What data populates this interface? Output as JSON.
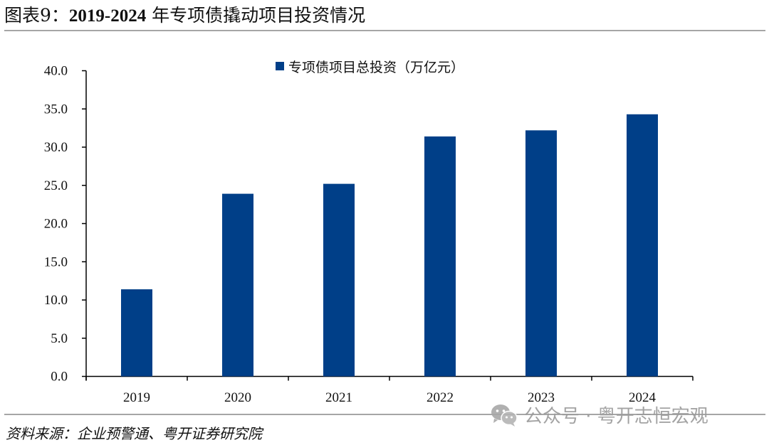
{
  "header": {
    "figure_label": "图表9：",
    "years": "2019-2024",
    "title_rest": " 年专项债撬动项目投资情况"
  },
  "legend": {
    "label": "专项债项目总投资（万亿元）",
    "color": "#003F88"
  },
  "footer": {
    "source": "资料来源：企业预警通、粤开证券研究院",
    "watermark": "公众号 · 粤开志恒宏观",
    "watermark_icon": "wechat-icon"
  },
  "chart_data": {
    "type": "bar",
    "title": "2019-2024 年专项债撬动项目投资情况",
    "categories": [
      "2019",
      "2020",
      "2021",
      "2022",
      "2023",
      "2024"
    ],
    "series": [
      {
        "name": "专项债项目总投资（万亿元）",
        "values": [
          11.4,
          23.9,
          25.2,
          31.4,
          32.2,
          34.3
        ],
        "color": "#003F88"
      }
    ],
    "xlabel": "",
    "ylabel": "",
    "ylim": [
      0,
      40
    ],
    "yticks": [
      "0.0",
      "5.0",
      "10.0",
      "15.0",
      "20.0",
      "25.0",
      "30.0",
      "35.0",
      "40.0"
    ],
    "grid": false,
    "legend_position": "top-center"
  }
}
